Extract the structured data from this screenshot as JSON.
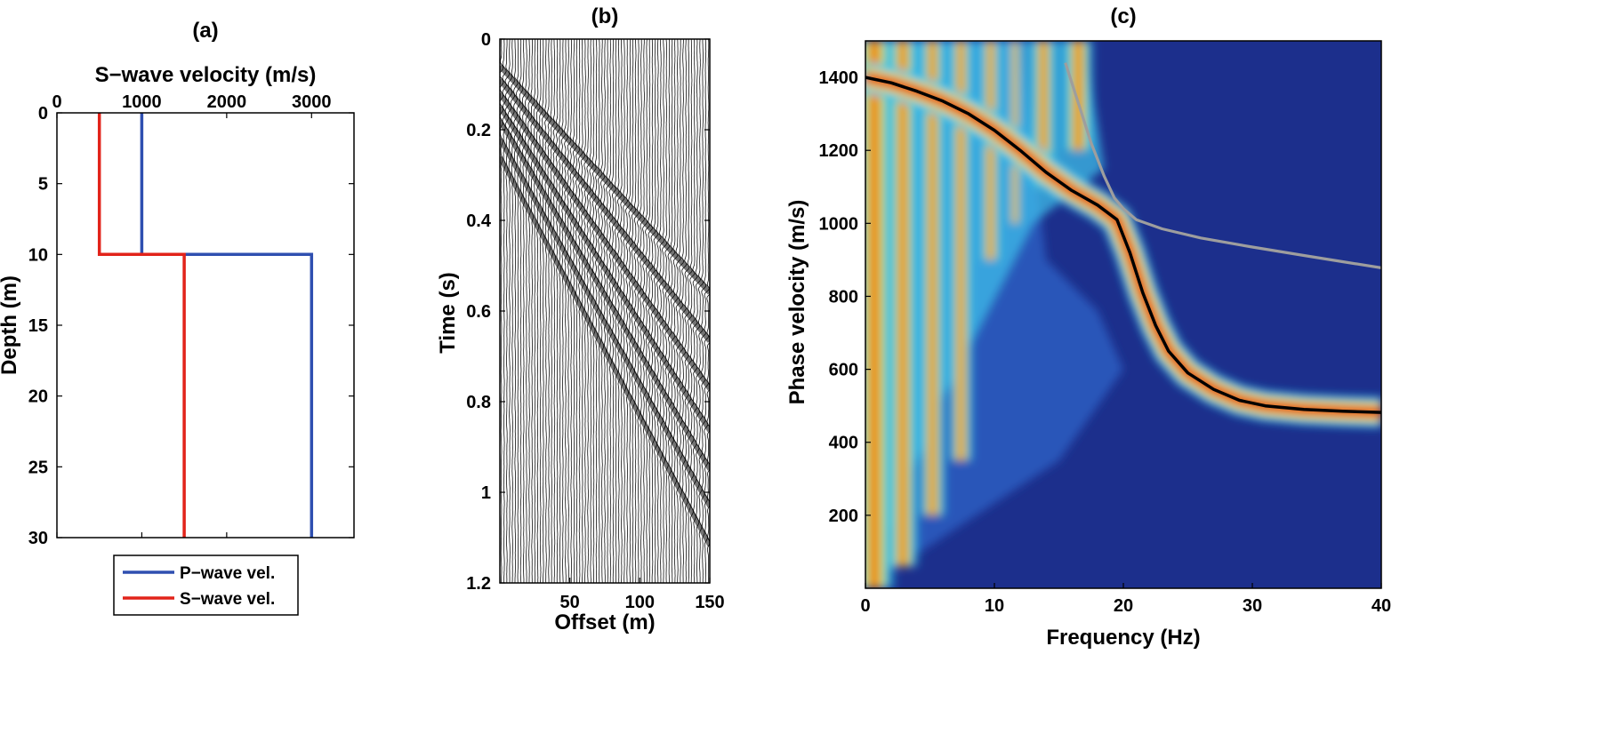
{
  "chart_data": [
    {
      "type": "line",
      "panel_label": "(a)",
      "xlabel": "S−wave velocity (m/s)",
      "ylabel": "Depth (m)",
      "xlim": [
        0,
        3500
      ],
      "ylim": [
        30,
        0
      ],
      "xticks": [
        0,
        1000,
        2000,
        3000
      ],
      "yticks": [
        0,
        5,
        10,
        15,
        20,
        25,
        30
      ],
      "legend_position": "below",
      "series": [
        {
          "name": "P−wave vel.",
          "color": "#2f4fb0",
          "points": [
            [
              1000,
              0
            ],
            [
              1000,
              10
            ],
            [
              3000,
              10
            ],
            [
              3000,
              30
            ]
          ]
        },
        {
          "name": "S−wave vel.",
          "color": "#e2231a",
          "points": [
            [
              500,
              0
            ],
            [
              500,
              10
            ],
            [
              1500,
              10
            ],
            [
              1500,
              30
            ]
          ]
        }
      ]
    },
    {
      "type": "wiggle",
      "panel_label": "(b)",
      "xlabel": "Offset (m)",
      "ylabel": "Time (s)",
      "xlim": [
        0,
        150
      ],
      "ylim": [
        1.2,
        0
      ],
      "xticks": [
        50,
        100,
        150
      ],
      "yticks": [
        0,
        0.2,
        0.4,
        0.6,
        0.8,
        1,
        1.2
      ],
      "trace_count": 75,
      "events": [
        {
          "t0": 0.06,
          "velocity": 300
        },
        {
          "t0": 0.09,
          "velocity": 260
        },
        {
          "t0": 0.12,
          "velocity": 230
        },
        {
          "t0": 0.15,
          "velocity": 210
        },
        {
          "t0": 0.18,
          "velocity": 195
        },
        {
          "t0": 0.22,
          "velocity": 185
        },
        {
          "t0": 0.26,
          "velocity": 175
        }
      ]
    },
    {
      "type": "heatmap",
      "panel_label": "(c)",
      "xlabel": "Frequency (Hz)",
      "ylabel": "Phase velocity (m/s)",
      "xlim": [
        0,
        40
      ],
      "ylim": [
        0,
        1500
      ],
      "xticks": [
        0,
        10,
        20,
        30,
        40
      ],
      "yticks": [
        200,
        400,
        600,
        800,
        1000,
        1200,
        1400
      ],
      "colormap": "jet",
      "background": "#1c2f8c",
      "curves": [
        {
          "color": "#000000",
          "points": [
            [
              0,
              1400
            ],
            [
              2,
              1385
            ],
            [
              4,
              1362
            ],
            [
              6,
              1335
            ],
            [
              8,
              1300
            ],
            [
              10,
              1255
            ],
            [
              12,
              1200
            ],
            [
              14,
              1140
            ],
            [
              16,
              1090
            ],
            [
              18,
              1050
            ],
            [
              19.5,
              1010
            ],
            [
              20.5,
              920
            ],
            [
              21.5,
              810
            ],
            [
              22.5,
              720
            ],
            [
              23.5,
              650
            ],
            [
              25,
              590
            ],
            [
              27,
              545
            ],
            [
              29,
              515
            ],
            [
              31,
              500
            ],
            [
              34,
              490
            ],
            [
              37,
              485
            ],
            [
              40,
              482
            ]
          ]
        },
        {
          "color": "#9e9e9e",
          "points": [
            [
              15.5,
              1440
            ],
            [
              16.5,
              1330
            ],
            [
              17.5,
              1220
            ],
            [
              18.5,
              1130
            ],
            [
              19.3,
              1070
            ],
            [
              20,
              1040
            ],
            [
              21,
              1010
            ],
            [
              23,
              985
            ],
            [
              26,
              960
            ],
            [
              30,
              935
            ],
            [
              34,
              912
            ],
            [
              37,
              895
            ],
            [
              40,
              878
            ]
          ]
        }
      ],
      "ridges": [
        {
          "center": 0.7,
          "half_width": 0.8,
          "v_low": 0,
          "v_high": 1500
        },
        {
          "center": 2.9,
          "half_width": 0.6,
          "v_low": 60,
          "v_high": 1500
        },
        {
          "center": 5.2,
          "half_width": 0.5,
          "v_low": 200,
          "v_high": 1500
        },
        {
          "center": 7.4,
          "half_width": 0.45,
          "v_low": 350,
          "v_high": 1500
        },
        {
          "center": 9.7,
          "half_width": 0.4,
          "v_low": 900,
          "v_high": 1500
        },
        {
          "center": 11.6,
          "half_width": 0.25,
          "v_low": 1000,
          "v_high": 1500
        },
        {
          "center": 13.8,
          "half_width": 0.5,
          "v_low": 1100,
          "v_high": 1500
        },
        {
          "center": 16.5,
          "half_width": 0.6,
          "v_low": 1200,
          "v_high": 1500
        }
      ]
    }
  ]
}
